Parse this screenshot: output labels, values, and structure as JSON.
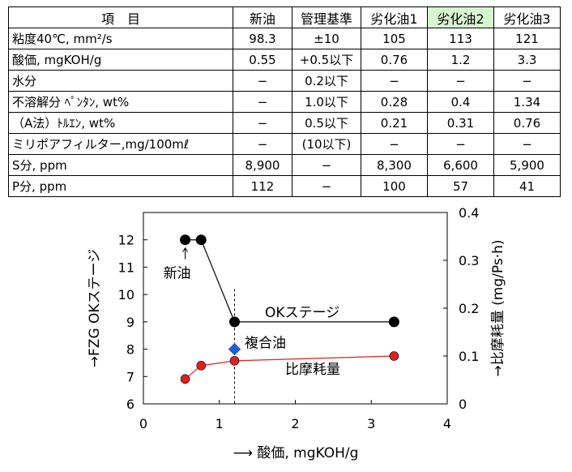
{
  "table": {
    "headers": [
      "項　目",
      "新油",
      "管理基準",
      "劣化油1",
      "劣化油2",
      "劣化油3"
    ],
    "highlight_column": 4,
    "highlight_color": "#d6f5d0",
    "rows": [
      [
        "粘度40℃, mm²/s",
        "98.3",
        "±10",
        "105",
        "113",
        "121"
      ],
      [
        "酸価, mgKOH/g",
        "0.55",
        "+0.5以下",
        "0.76",
        "1.2",
        "3.3"
      ],
      [
        "水分",
        "−",
        "0.2以下",
        "−",
        "−",
        "−"
      ],
      [
        "不溶解分 ﾍﾟﾝﾀﾝ, wt%",
        "−",
        "1.0以下",
        "0.28",
        "0.4",
        "1.34"
      ],
      [
        "（A法）ﾄﾙｴﾝ, wt%",
        "−",
        "0.5以下",
        "0.21",
        "0.31",
        "0.76"
      ],
      [
        "ミリポアフィルター,mg/100mℓ",
        "−",
        "(10以下)",
        "−",
        "−",
        "−"
      ],
      [
        "S分, ppm",
        "8,900",
        "−",
        "8,300",
        "6,600",
        "5,900"
      ],
      [
        "P分, ppm",
        "112",
        "−",
        "100",
        "57",
        "41"
      ]
    ]
  },
  "chart_data": {
    "type": "scatter",
    "xlabel": "⟶ 酸価, mgKOH/g",
    "ylabel_left": "→FZG OKステージ",
    "ylabel_right": "→比摩耗量 (mg/Ps·h)",
    "xlim": [
      0,
      4
    ],
    "ylim_left": [
      6,
      13
    ],
    "ylim_right": [
      0,
      0.4
    ],
    "xticks": [
      "0",
      "1",
      "2",
      "3",
      "4"
    ],
    "yticks_left": [
      "6",
      "7",
      "8",
      "9",
      "10",
      "11",
      "12"
    ],
    "yticks_right": [
      "0",
      "0.1",
      "0.2",
      "0.3",
      "0.4"
    ],
    "grid": false,
    "reference_line_x": 1.2,
    "series": [
      {
        "name": "OKステージ",
        "axis": "left",
        "color": "#000000",
        "marker": "circle",
        "x": [
          0.55,
          0.76,
          1.2,
          3.3
        ],
        "y": [
          12,
          12,
          9,
          9
        ]
      },
      {
        "name": "比摩耗量",
        "axis": "right",
        "color": "#e02020",
        "marker": "circle",
        "x": [
          0.55,
          0.76,
          1.2,
          3.3
        ],
        "y": [
          0.052,
          0.08,
          0.09,
          0.1
        ]
      },
      {
        "name": "複合油",
        "axis": "left",
        "color": "#1f5fd6",
        "marker": "diamond",
        "x": [
          1.2
        ],
        "y": [
          8
        ]
      }
    ],
    "annotations": [
      "新油",
      "OKステージ",
      "複合油",
      "比摩耗量"
    ]
  }
}
